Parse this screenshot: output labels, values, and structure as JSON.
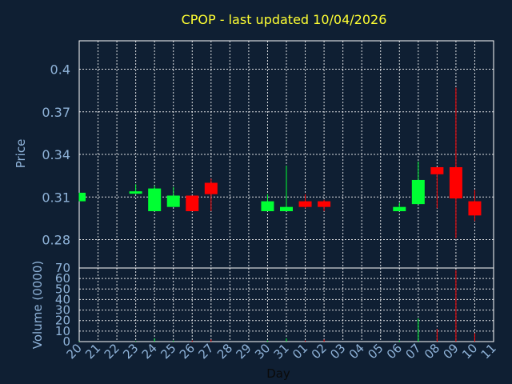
{
  "chart_data": {
    "type": "candlestick",
    "title": "CPOP - last updated 10/04/2026",
    "xlabel": "Day",
    "ylabel": "Price",
    "volume_label": "Volume (0000)",
    "ylim": [
      0.26,
      0.42
    ],
    "yticks": [
      "0.4",
      "0.37",
      "0.34",
      "0.31",
      "0.28"
    ],
    "yticks_values": [
      0.4,
      0.37,
      0.34,
      0.31,
      0.28
    ],
    "volume_ylim": [
      0,
      70
    ],
    "volume_ticks": [
      "70",
      "60",
      "50",
      "40",
      "30",
      "20",
      "10",
      "0"
    ],
    "volume_ticks_values": [
      70,
      60,
      50,
      40,
      30,
      20,
      10,
      0
    ],
    "x_labels": [
      "20",
      "21",
      "22",
      "23",
      "24",
      "25",
      "26",
      "27",
      "28",
      "29",
      "30",
      "31",
      "01",
      "02",
      "03",
      "04",
      "05",
      "06",
      "07",
      "08",
      "09",
      "10",
      "11"
    ],
    "grid": true,
    "up_color": "#00ff33",
    "down_color": "#ff0000",
    "candles": [
      {
        "x": "20",
        "open": 0.307,
        "high": 0.313,
        "low": 0.307,
        "close": 0.313,
        "volume": 0.5
      },
      {
        "x": "23",
        "open": 0.313,
        "high": 0.319,
        "low": 0.312,
        "close": 0.314,
        "volume": 0.5
      },
      {
        "x": "24",
        "open": 0.3,
        "high": 0.318,
        "low": 0.3,
        "close": 0.316,
        "volume": 3
      },
      {
        "x": "25",
        "open": 0.303,
        "high": 0.317,
        "low": 0.303,
        "close": 0.311,
        "volume": 1
      },
      {
        "x": "26",
        "open": 0.311,
        "high": 0.311,
        "low": 0.3,
        "close": 0.3,
        "volume": 1
      },
      {
        "x": "27",
        "open": 0.32,
        "high": 0.323,
        "low": 0.3,
        "close": 0.312,
        "volume": 2
      },
      {
        "x": "30",
        "open": 0.3,
        "high": 0.312,
        "low": 0.3,
        "close": 0.307,
        "volume": 1
      },
      {
        "x": "31",
        "open": 0.3,
        "high": 0.332,
        "low": 0.3,
        "close": 0.303,
        "volume": 3
      },
      {
        "x": "01",
        "open": 0.307,
        "high": 0.312,
        "low": 0.302,
        "close": 0.303,
        "volume": 1
      },
      {
        "x": "02",
        "open": 0.307,
        "high": 0.308,
        "low": 0.3,
        "close": 0.303,
        "volume": 2
      },
      {
        "x": "06",
        "open": 0.3,
        "high": 0.306,
        "low": 0.3,
        "close": 0.303,
        "volume": 1
      },
      {
        "x": "07",
        "open": 0.305,
        "high": 0.335,
        "low": 0.305,
        "close": 0.322,
        "volume": 22
      },
      {
        "x": "08",
        "open": 0.331,
        "high": 0.331,
        "low": 0.302,
        "close": 0.326,
        "volume": 12
      },
      {
        "x": "09",
        "open": 0.331,
        "high": 0.387,
        "low": 0.281,
        "close": 0.309,
        "volume": 68
      },
      {
        "x": "10",
        "open": 0.307,
        "high": 0.315,
        "low": 0.293,
        "close": 0.297,
        "volume": 8
      }
    ]
  }
}
